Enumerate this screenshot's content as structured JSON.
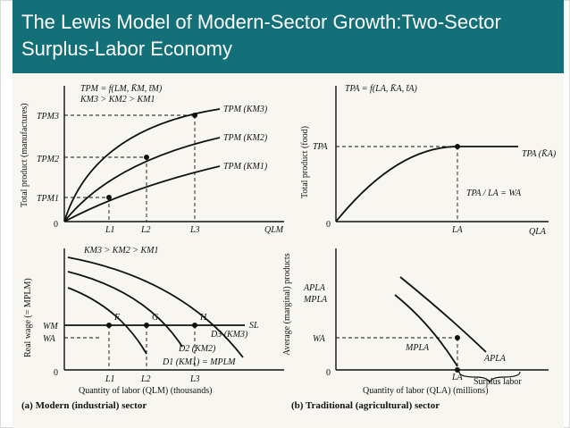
{
  "slide": {
    "title": "The Lewis Model of Modern-Sector Growth:Two-Sector\nSurplus-Labor Economy",
    "colors": {
      "title_bar": "#136f78",
      "title_text": "#ffffff",
      "figure_bg": "#f7f6f1"
    }
  },
  "panel_a_top": {
    "formula1": "TPM = f(LM, K̄M, t̄M)",
    "formula2": "KM3 > KM2 > KM1",
    "y_axis": "Total product (manufactures)",
    "y_ticks": [
      "TPM3",
      "TPM2",
      "TPM1"
    ],
    "x_axis": "QLM",
    "origin": "0",
    "x_ticks": [
      "L1",
      "L2",
      "L3"
    ],
    "curves": [
      "TPM (KM3)",
      "TPM (KM2)",
      "TPM (KM1)"
    ]
  },
  "panel_b_top": {
    "formula": "TPA = f(LA, K̄A, t̄A)",
    "y_axis": "Total product (food)",
    "y_tick": "TPA",
    "x_axis": "QLA",
    "origin": "0",
    "x_tick": "LA",
    "curve": "TPA (K̄A)",
    "wage_label": "TPA / LA = WA"
  },
  "panel_a_bottom": {
    "formula": "KM3 > KM2 > KM1",
    "y_axis": "Real wage (= MPLM)",
    "y_ticks": [
      "WM",
      "WA"
    ],
    "origin": "0",
    "x_ticks": [
      "L1",
      "L2",
      "L3"
    ],
    "points": [
      "F",
      "G",
      "H"
    ],
    "supply_label": "SL",
    "curves": [
      "D3 (KM3)",
      "D2 (KM2)",
      "D1 (KM1) = MPLM"
    ],
    "x_axis": "Quantity of labor (QLM) (thousands)",
    "caption": "(a) Modern (industrial) sector"
  },
  "panel_b_bottom": {
    "y_axis": "Average (marginal) products",
    "y_ticks": [
      "APLA",
      "MPLA",
      "WA"
    ],
    "origin": "0",
    "x_tick": "LA",
    "curves": [
      "MPLA",
      "APLA"
    ],
    "surplus_label": "Surplus labor",
    "x_axis": "Quantity of labor (QLA) (millions)",
    "caption": "(b) Traditional (agricultural) sector"
  }
}
